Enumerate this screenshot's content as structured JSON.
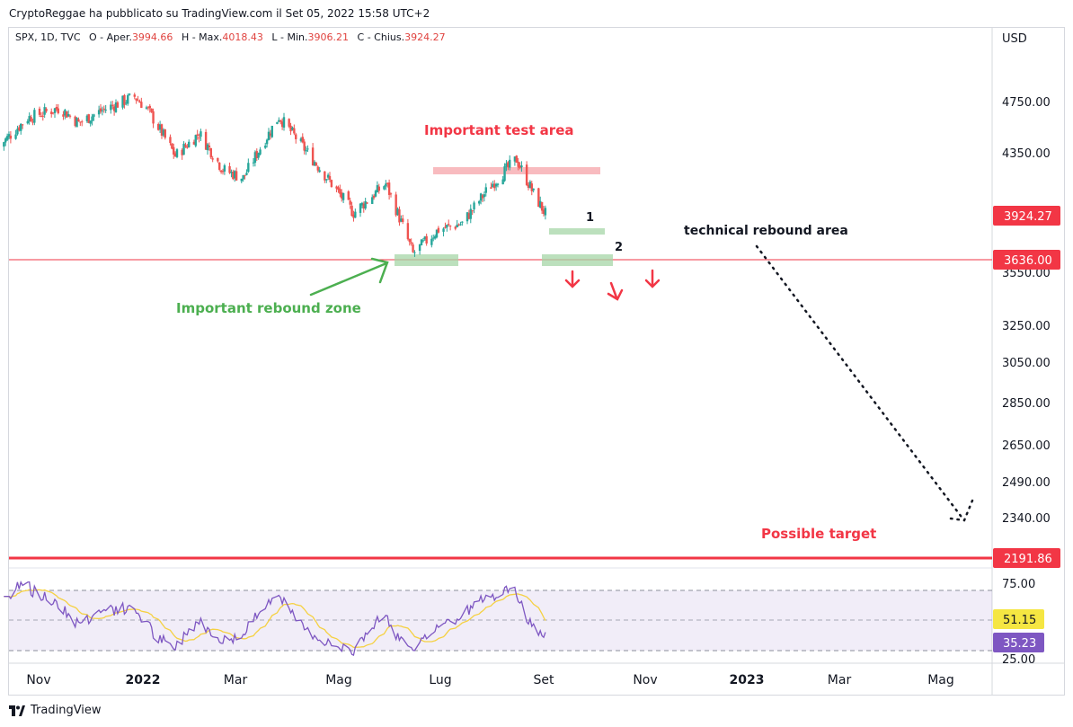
{
  "attribution": "CryptoReggae ha pubblicato su TradingView.com il Set 05, 2022 15:58 UTC+2",
  "legend": {
    "symbol": "SPX, 1D, TVC",
    "open_label": "O - Aper.",
    "open": "3994.66",
    "high_label": "H - Max.",
    "high": "4018.43",
    "low_label": "L - Min.",
    "low": "3906.21",
    "close_label": "C - Chius.",
    "close": "3924.27"
  },
  "footer": {
    "brand": "TradingView"
  },
  "colors": {
    "up": "#26a69a",
    "down": "#ef5350",
    "red_line": "#f23645",
    "green_zone": "#a5d6a7",
    "pink_zone": "#f8bbbf",
    "rsi": "#7e57c2",
    "rsi_ma": "#f5d142",
    "annotation_red": "#f23645",
    "annotation_green": "#4caf50"
  },
  "chart_data": {
    "type": "candlestick",
    "currency": "USD",
    "x_labels": [
      "Nov",
      "2022",
      "Mar",
      "Mag",
      "Lug",
      "Set",
      "Nov",
      "2023",
      "Mar",
      "Mag"
    ],
    "y_ticks": [
      "4750.00",
      "4350.00",
      "3550.00",
      "3250.00",
      "3050.00",
      "2850.00",
      "2650.00",
      "2490.00",
      "2340.00"
    ],
    "price_badges": [
      {
        "label": "3924.27",
        "value": 3924.27
      },
      {
        "label": "3636.00",
        "value": 3636.0
      },
      {
        "label": "2191.86",
        "value": 2191.86
      }
    ],
    "price_path_approx": [
      {
        "date": "2021-10-15",
        "close": 4400
      },
      {
        "date": "2021-11-01",
        "close": 4620
      },
      {
        "date": "2021-11-20",
        "close": 4700
      },
      {
        "date": "2021-12-01",
        "close": 4580
      },
      {
        "date": "2021-12-15",
        "close": 4680
      },
      {
        "date": "2022-01-03",
        "close": 4790
      },
      {
        "date": "2022-01-10",
        "close": 4700
      },
      {
        "date": "2022-01-27",
        "close": 4330
      },
      {
        "date": "2022-02-10",
        "close": 4500
      },
      {
        "date": "2022-02-24",
        "close": 4230
      },
      {
        "date": "2022-03-08",
        "close": 4170
      },
      {
        "date": "2022-03-29",
        "close": 4630
      },
      {
        "date": "2022-04-12",
        "close": 4400
      },
      {
        "date": "2022-04-29",
        "close": 4130
      },
      {
        "date": "2022-05-12",
        "close": 3930
      },
      {
        "date": "2022-05-31",
        "close": 4130
      },
      {
        "date": "2022-06-16",
        "close": 3666
      },
      {
        "date": "2022-07-01",
        "close": 3820
      },
      {
        "date": "2022-07-15",
        "close": 3860
      },
      {
        "date": "2022-08-01",
        "close": 4120
      },
      {
        "date": "2022-08-16",
        "close": 4305
      },
      {
        "date": "2022-08-26",
        "close": 4060
      },
      {
        "date": "2022-09-02",
        "close": 3924
      }
    ],
    "rsi": {
      "levels": [
        "75.00",
        "25.00"
      ],
      "badges": [
        {
          "label": "51.15",
          "value": 51.15
        },
        {
          "label": "35.23",
          "value": 35.23
        }
      ]
    },
    "annotations": {
      "test_area": "Important test area",
      "rebound_zone": "Important rebound zone",
      "technical_rebound": "technical rebound area",
      "target": "Possible target",
      "label_1": "1",
      "label_2": "2"
    }
  }
}
